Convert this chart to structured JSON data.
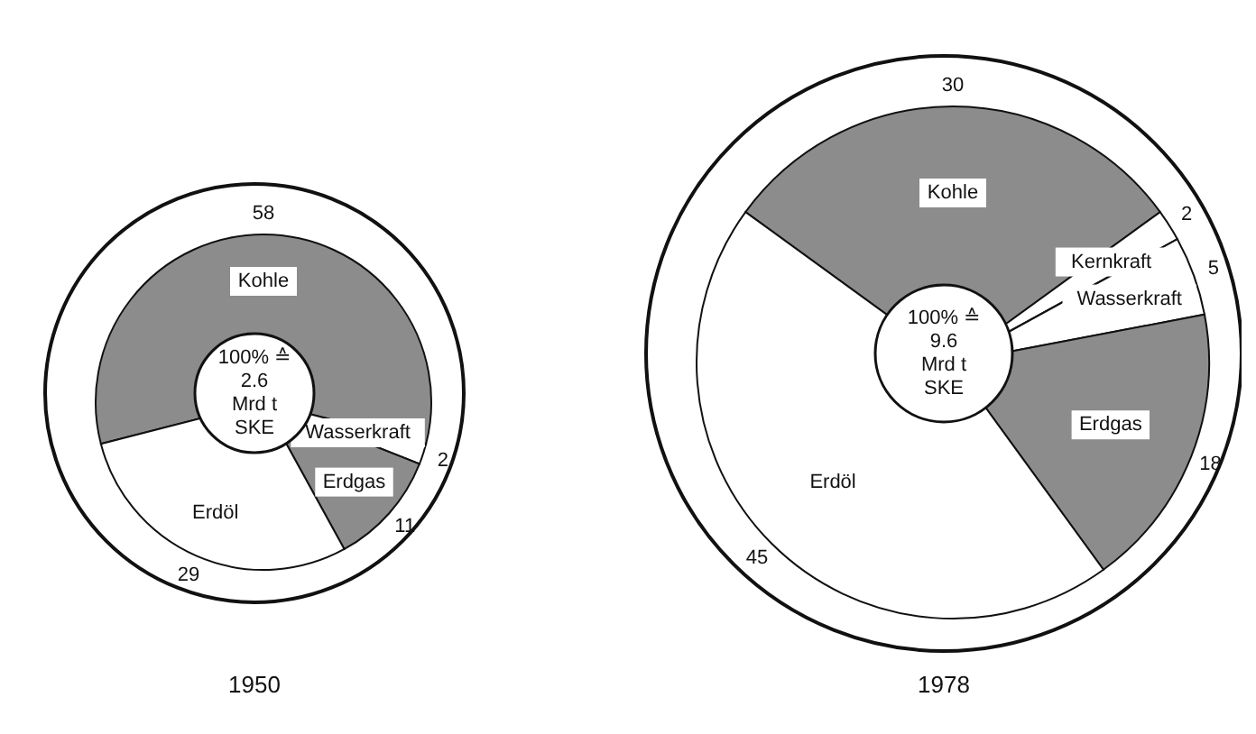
{
  "chart_data": [
    {
      "type": "pie",
      "title": "1950",
      "categories": [
        "Kohle",
        "Wasserkraft",
        "Erdgas",
        "Erdöl"
      ],
      "values": [
        58,
        2,
        11,
        29
      ],
      "colors": [
        "#8c8c8c",
        "#ffffff",
        "#8c8c8c",
        "#ffffff"
      ],
      "data_labels": true,
      "legend": false,
      "annotations": [
        "100% ≙",
        "2.6",
        "Mrd  t",
        "SKE"
      ]
    },
    {
      "type": "pie",
      "title": "1978",
      "categories": [
        "Kohle",
        "Kernkraft",
        "Wasserkraft",
        "Erdgas",
        "Erdöl"
      ],
      "values": [
        30,
        2,
        5,
        18,
        45
      ],
      "colors": [
        "#8c8c8c",
        "#ffffff",
        "#ffffff",
        "#8c8c8c",
        "#ffffff"
      ],
      "data_labels": true,
      "legend": false,
      "annotations": [
        "100% ≙",
        "9.6",
        "Mrd  t",
        "SKE"
      ]
    }
  ]
}
